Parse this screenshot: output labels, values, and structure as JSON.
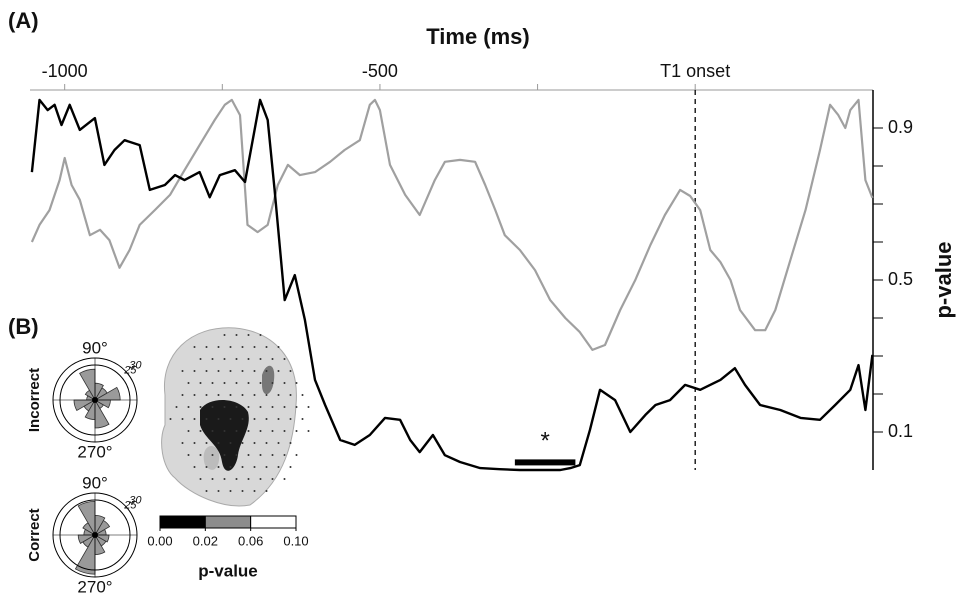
{
  "chart_data": [
    {
      "type": "line",
      "panel_label": "(A)",
      "xlabel": "Time (ms)",
      "ylabel": "p-value",
      "xlim": [
        -1055,
        282
      ],
      "xticks": [
        -1000,
        -500,
        {
          "value": 0,
          "label": "T1 onset"
        }
      ],
      "xminorticks": [
        -750,
        -250
      ],
      "ylim": [
        0,
        1
      ],
      "yticks": [
        0.1,
        0.5,
        0.9
      ],
      "yminorticks": [
        0.2,
        0.3,
        0.4,
        0.6,
        0.7,
        0.8
      ],
      "series": [
        {
          "color": "#000000",
          "x": [
            -1052,
            -1040,
            -1027,
            -1016,
            -1005,
            -992,
            -976,
            -952,
            -937,
            -921,
            -905,
            -881,
            -865,
            -841,
            -825,
            -810,
            -786,
            -770,
            -754,
            -730,
            -714,
            -690,
            -678,
            -667,
            -651,
            -635,
            -619,
            -603,
            -587,
            -563,
            -540,
            -516,
            -492,
            -468,
            -452,
            -437,
            -416,
            -397,
            -373,
            -341,
            -310,
            -278,
            -246,
            -214,
            -198,
            -183,
            -167,
            -151,
            -127,
            -103,
            -79,
            -63,
            -40,
            -16,
            8,
            40,
            63,
            79,
            103,
            135,
            167,
            198,
            222,
            246,
            259,
            270,
            281
          ],
          "values": [
            0.784,
            0.974,
            0.947,
            0.961,
            0.908,
            0.961,
            0.895,
            0.926,
            0.803,
            0.842,
            0.868,
            0.855,
            0.737,
            0.75,
            0.776,
            0.763,
            0.784,
            0.718,
            0.776,
            0.789,
            0.758,
            0.974,
            0.921,
            0.737,
            0.447,
            0.513,
            0.395,
            0.237,
            0.171,
            0.079,
            0.066,
            0.092,
            0.137,
            0.132,
            0.079,
            0.047,
            0.092,
            0.039,
            0.021,
            0.005,
            0.002,
            0,
            0,
            0,
            0.005,
            0.013,
            0.105,
            0.211,
            0.184,
            0.1,
            0.145,
            0.171,
            0.184,
            0.224,
            0.211,
            0.237,
            0.268,
            0.224,
            0.171,
            0.158,
            0.137,
            0.132,
            0.171,
            0.211,
            0.276,
            0.158,
            0.303
          ]
        },
        {
          "color": "#a0a0a0",
          "x": [
            -1052,
            -1040,
            -1024,
            -1008,
            -1000,
            -989,
            -976,
            -960,
            -944,
            -929,
            -913,
            -897,
            -881,
            -857,
            -833,
            -810,
            -786,
            -762,
            -746,
            -735,
            -722,
            -710,
            -694,
            -678,
            -662,
            -646,
            -627,
            -603,
            -579,
            -556,
            -532,
            -516,
            -508,
            -500,
            -484,
            -460,
            -437,
            -413,
            -397,
            -373,
            -349,
            -333,
            -317,
            -302,
            -278,
            -254,
            -230,
            -206,
            -183,
            -163,
            -143,
            -119,
            -95,
            -71,
            -48,
            -24,
            -8,
            8,
            24,
            40,
            56,
            71,
            95,
            111,
            127,
            151,
            175,
            198,
            214,
            227,
            238,
            246,
            259,
            270,
            281
          ],
          "values": [
            0.6,
            0.645,
            0.684,
            0.763,
            0.821,
            0.75,
            0.711,
            0.618,
            0.632,
            0.605,
            0.532,
            0.579,
            0.645,
            0.684,
            0.724,
            0.789,
            0.855,
            0.921,
            0.961,
            0.974,
            0.934,
            0.645,
            0.626,
            0.645,
            0.75,
            0.803,
            0.776,
            0.784,
            0.811,
            0.842,
            0.868,
            0.961,
            0.974,
            0.947,
            0.803,
            0.724,
            0.671,
            0.763,
            0.811,
            0.816,
            0.811,
            0.75,
            0.684,
            0.618,
            0.579,
            0.526,
            0.447,
            0.4,
            0.363,
            0.316,
            0.329,
            0.421,
            0.5,
            0.592,
            0.671,
            0.737,
            0.721,
            0.684,
            0.579,
            0.547,
            0.5,
            0.421,
            0.368,
            0.368,
            0.421,
            0.553,
            0.684,
            0.842,
            0.961,
            0.934,
            0.9,
            0.947,
            0.974,
            0.763,
            0.716
          ]
        }
      ],
      "significance": {
        "x": [
          -286,
          -190
        ],
        "y": 0.02,
        "label": "*"
      }
    },
    {
      "type": "rose",
      "panel_label": "(B)",
      "color": "#9a9a9a",
      "rlim": [
        0,
        30
      ],
      "rticks": [
        25,
        30
      ],
      "angle_labels": [
        "90°",
        "270°"
      ],
      "series": [
        {
          "name": "Incorrect",
          "values": [
            18,
            10,
            12,
            22,
            8,
            6,
            15,
            9,
            14,
            20,
            7,
            11
          ]
        },
        {
          "name": "Correct",
          "values": [
            8,
            12,
            14,
            24,
            10,
            8,
            12,
            10,
            28,
            14,
            9,
            10
          ]
        }
      ]
    },
    {
      "type": "colorbar",
      "label": "p-value",
      "colors": [
        "#000000",
        "#8c8c8c",
        "#ffffff"
      ],
      "ticks": [
        {
          "value": 0,
          "label": "0.00"
        },
        {
          "value": 0.02,
          "label": "0.02"
        },
        {
          "value": 0.06,
          "label": "0.06"
        },
        {
          "value": 0.1,
          "label": "0.10"
        }
      ]
    }
  ]
}
